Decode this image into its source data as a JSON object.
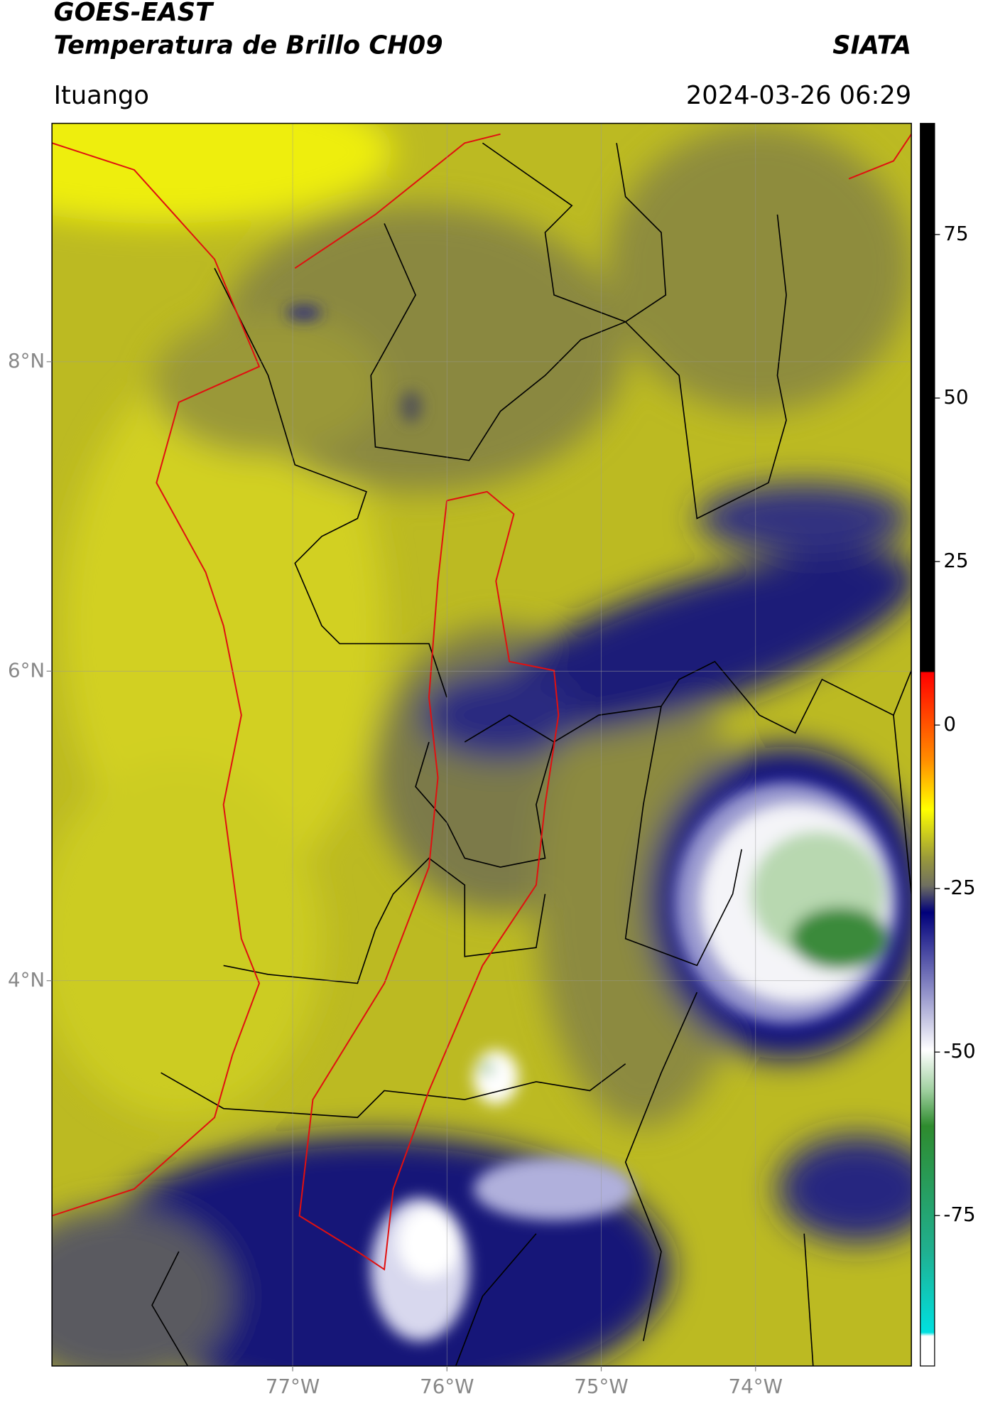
{
  "chart_data": {
    "type": "map",
    "title": "GOES-EAST",
    "subtitle": "Temperatura de Brillo CH09",
    "source": "SIATA",
    "location": "Ituango",
    "date": "2024-03-26 06:29",
    "xlim": [
      -78.56,
      -72.99
    ],
    "ylim": [
      1.51,
      9.54
    ],
    "xticks": [
      {
        "value": -77,
        "label": "77°W"
      },
      {
        "value": -76,
        "label": "76°W"
      },
      {
        "value": -75,
        "label": "75°W"
      },
      {
        "value": -74,
        "label": "74°W"
      }
    ],
    "yticks": [
      {
        "value": 8,
        "label": "8°N"
      },
      {
        "value": 6,
        "label": "6°N"
      },
      {
        "value": 4,
        "label": "4°N"
      }
    ],
    "clim": [
      -98,
      92
    ],
    "cticks": [
      75,
      50,
      25,
      0,
      -25,
      -50,
      -75
    ],
    "grid": true
  }
}
